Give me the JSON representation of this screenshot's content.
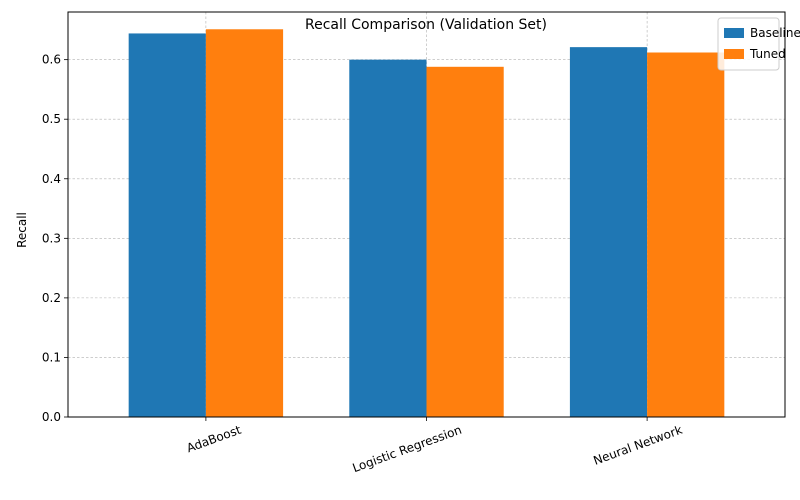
{
  "chart_data": {
    "type": "bar",
    "title": "Recall Comparison (Validation Set)",
    "xlabel": "",
    "ylabel": "Recall",
    "categories": [
      "AdaBoost",
      "Logistic Regression",
      "Neural Network"
    ],
    "series": [
      {
        "name": "Baseline",
        "color": "#1f77b4",
        "values": [
          0.644,
          0.6,
          0.621
        ]
      },
      {
        "name": "Tuned",
        "color": "#ff7f0e",
        "values": [
          0.651,
          0.588,
          0.612
        ]
      }
    ],
    "ylim": [
      0,
      0.68
    ],
    "yticks": [
      "0.0",
      "0.1",
      "0.2",
      "0.3",
      "0.4",
      "0.5",
      "0.6"
    ],
    "grid": true,
    "legend_position": "top-right"
  }
}
